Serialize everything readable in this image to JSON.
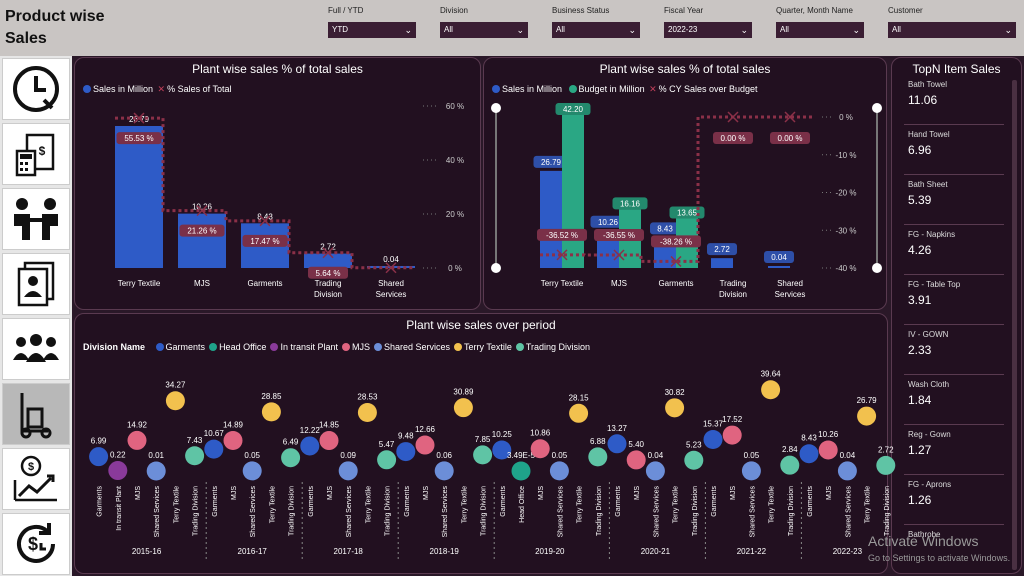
{
  "header": {
    "title_line1": "Product wise",
    "title_line2": "Sales"
  },
  "filters": [
    {
      "label": "Full / YTD",
      "value": "YTD"
    },
    {
      "label": "Division",
      "value": "All"
    },
    {
      "label": "Business Status",
      "value": "All"
    },
    {
      "label": "Fiscal Year",
      "value": "2022-23"
    },
    {
      "label": "Quarter, Month Name",
      "value": "All"
    },
    {
      "label": "Customer",
      "value": "All"
    }
  ],
  "nav": [
    "clock-icon",
    "invoice-icon",
    "handshake-icon",
    "employee-directory-icon",
    "team-icon",
    "hand-truck-icon",
    "sales-growth-icon",
    "payment-cycle-icon"
  ],
  "chart1": {
    "title": "Plant wise sales % of total sales",
    "legend": {
      "series1": "Sales in Million",
      "series2": "% Sales of Total"
    },
    "right_ticks": [
      "60 %",
      "40 %",
      "20 %",
      "0 %"
    ],
    "chart_data": {
      "type": "bar",
      "categories": [
        "Terry Textile",
        "MJS",
        "Garments",
        "Trading Division",
        "Shared Services"
      ],
      "series": [
        {
          "name": "Sales in Million",
          "values": [
            26.79,
            10.26,
            8.43,
            2.72,
            0.04
          ],
          "labels": [
            "26.79",
            "10.26",
            "8.43",
            "2.72",
            "0.04"
          ]
        },
        {
          "name": "% Sales of Total",
          "values": [
            55.53,
            21.26,
            17.47,
            5.64,
            0.09
          ],
          "labels": [
            "55.53 %",
            "21.26 %",
            "17.47 %",
            "5.64 %",
            ""
          ]
        }
      ],
      "y2lim": [
        0,
        60
      ],
      "colors": {
        "bar": "#2e5bc7",
        "line": "#8b3048",
        "label_bg": "#7a3048"
      }
    }
  },
  "chart2": {
    "title": "Plant wise sales % of total sales",
    "legend": {
      "series1": "Sales in Million",
      "series2": "Budget in Million",
      "series3": "% CY Sales over Budget"
    },
    "right_ticks": [
      "0 %",
      "-10 %",
      "-20 %",
      "-30 %",
      "-40 %"
    ],
    "chart_data": {
      "type": "bar",
      "categories": [
        "Terry Textile",
        "MJS",
        "Garments",
        "Trading Division",
        "Shared Services"
      ],
      "series": [
        {
          "name": "Sales in Million",
          "values": [
            26.79,
            10.26,
            8.43,
            2.72,
            0.04
          ],
          "labels": [
            "26.79",
            "10.26",
            "8.43",
            "2.72",
            "0.04"
          ]
        },
        {
          "name": "Budget in Million",
          "values": [
            42.2,
            16.16,
            13.65,
            null,
            null
          ],
          "labels": [
            "42.20",
            "16.16",
            "13.65",
            "",
            ""
          ]
        },
        {
          "name": "% CY Sales over Budget",
          "values": [
            -36.52,
            -36.55,
            -38.26,
            0.0,
            0.0
          ],
          "labels": [
            "-36.52 %",
            "-36.55 %",
            "-38.26 %",
            "0.00 %",
            "0.00 %"
          ]
        }
      ],
      "y2lim": [
        -40,
        0
      ],
      "colors": {
        "sales": "#2e5bc7",
        "budget": "#2aa784",
        "line": "#8b3048"
      }
    }
  },
  "topn": {
    "title": "TopN Item Sales",
    "items": [
      {
        "name": "Bath Towel",
        "value": "11.06"
      },
      {
        "name": "Hand Towel",
        "value": "6.96"
      },
      {
        "name": "Bath Sheet",
        "value": "5.39"
      },
      {
        "name": "FG - Napkins",
        "value": "4.26"
      },
      {
        "name": "FG - Table Top",
        "value": "3.91"
      },
      {
        "name": "IV - GOWN",
        "value": "2.33"
      },
      {
        "name": "Wash Cloth",
        "value": "1.84"
      },
      {
        "name": "Reg - Gown",
        "value": "1.27"
      },
      {
        "name": "FG - Aprons",
        "value": "1.26"
      },
      {
        "name": "Bathrobe",
        "value": ""
      }
    ]
  },
  "chart3": {
    "title": "Plant wise sales over period",
    "legend_title": "Division Name",
    "divisions": [
      {
        "name": "Garments",
        "color": "#2e5bc7"
      },
      {
        "name": "Head Office",
        "color": "#1fa38a"
      },
      {
        "name": "In transit Plant",
        "color": "#8a3a9a"
      },
      {
        "name": "MJS",
        "color": "#e06480"
      },
      {
        "name": "Shared Services",
        "color": "#6c8ed8"
      },
      {
        "name": "Terry Textile",
        "color": "#f2c14e"
      },
      {
        "name": "Trading Division",
        "color": "#5fc4a5"
      }
    ],
    "chart_data": {
      "type": "scatter",
      "years": [
        {
          "year": "2015-16",
          "points": [
            {
              "division": "Garments",
              "value": 6.99,
              "label": "6.99"
            },
            {
              "division": "In transit Plant",
              "value": 0.22,
              "label": "0.22"
            },
            {
              "division": "MJS",
              "value": 14.92,
              "label": "14.92"
            },
            {
              "division": "Shared Services",
              "value": 0.01,
              "label": "0.01"
            },
            {
              "division": "Terry Textile",
              "value": 34.27,
              "label": "34.27"
            },
            {
              "division": "Trading Division",
              "value": 7.43,
              "label": "7.43"
            }
          ]
        },
        {
          "year": "2016-17",
          "points": [
            {
              "division": "Garments",
              "value": 10.67,
              "label": "10.67"
            },
            {
              "division": "MJS",
              "value": 14.89,
              "label": "14.89"
            },
            {
              "division": "Shared Services",
              "value": 0.05,
              "label": "0.05"
            },
            {
              "division": "Terry Textile",
              "value": 28.85,
              "label": "28.85"
            },
            {
              "division": "Trading Division",
              "value": 6.49,
              "label": "6.49"
            }
          ]
        },
        {
          "year": "2017-18",
          "points": [
            {
              "division": "Garments",
              "value": 12.22,
              "label": "12.22"
            },
            {
              "division": "MJS",
              "value": 14.85,
              "label": "14.85"
            },
            {
              "division": "Shared Services",
              "value": 0.09,
              "label": "0.09"
            },
            {
              "division": "Terry Textile",
              "value": 28.53,
              "label": "28.53"
            },
            {
              "division": "Trading Division",
              "value": 5.47,
              "label": "5.47"
            }
          ]
        },
        {
          "year": "2018-19",
          "points": [
            {
              "division": "Garments",
              "value": 9.48,
              "label": "9.48"
            },
            {
              "division": "MJS",
              "value": 12.66,
              "label": "12.66"
            },
            {
              "division": "Shared Services",
              "value": 0.06,
              "label": "0.06"
            },
            {
              "division": "Terry Textile",
              "value": 30.89,
              "label": "30.89"
            },
            {
              "division": "Trading Division",
              "value": 7.85,
              "label": "7.85"
            }
          ]
        },
        {
          "year": "2019-20",
          "points": [
            {
              "division": "Garments",
              "value": 10.25,
              "label": "10.25"
            },
            {
              "division": "Head Office",
              "value": 3.49e-05,
              "label": "3.49E-5"
            },
            {
              "division": "MJS",
              "value": 10.86,
              "label": "10.86"
            },
            {
              "division": "Shared Services",
              "value": 0.05,
              "label": "0.05"
            },
            {
              "division": "Terry Textile",
              "value": 28.15,
              "label": "28.15"
            },
            {
              "division": "Trading Division",
              "value": 6.88,
              "label": "6.88"
            }
          ]
        },
        {
          "year": "2020-21",
          "points": [
            {
              "division": "Garments",
              "value": 13.27,
              "label": "13.27"
            },
            {
              "division": "MJS",
              "value": 5.4,
              "label": "5.40"
            },
            {
              "division": "Shared Services",
              "value": 0.04,
              "label": "0.04"
            },
            {
              "division": "Terry Textile",
              "value": 30.82,
              "label": "30.82"
            },
            {
              "division": "Trading Division",
              "value": 5.23,
              "label": "5.23"
            }
          ]
        },
        {
          "year": "2021-22",
          "points": [
            {
              "division": "Garments",
              "value": 15.37,
              "label": "15.37"
            },
            {
              "division": "MJS",
              "value": 17.52,
              "label": "17.52"
            },
            {
              "division": "Shared Services",
              "value": 0.05,
              "label": "0.05"
            },
            {
              "division": "Terry Textile",
              "value": 39.64,
              "label": "39.64"
            },
            {
              "division": "Trading Division",
              "value": 2.84,
              "label": "2.84"
            }
          ]
        },
        {
          "year": "2022-23",
          "points": [
            {
              "division": "Garments",
              "value": 8.43,
              "label": "8.43"
            },
            {
              "division": "MJS",
              "value": 10.26,
              "label": "10.26"
            },
            {
              "division": "Shared Services",
              "value": 0.04,
              "label": "0.04"
            },
            {
              "division": "Terry Textile",
              "value": 26.79,
              "label": "26.79"
            },
            {
              "division": "Trading Division",
              "value": 2.72,
              "label": "2.72"
            }
          ]
        }
      ]
    }
  },
  "watermark": {
    "line1": "Activate Windows",
    "line2": "Go to Settings to activate Windows."
  }
}
